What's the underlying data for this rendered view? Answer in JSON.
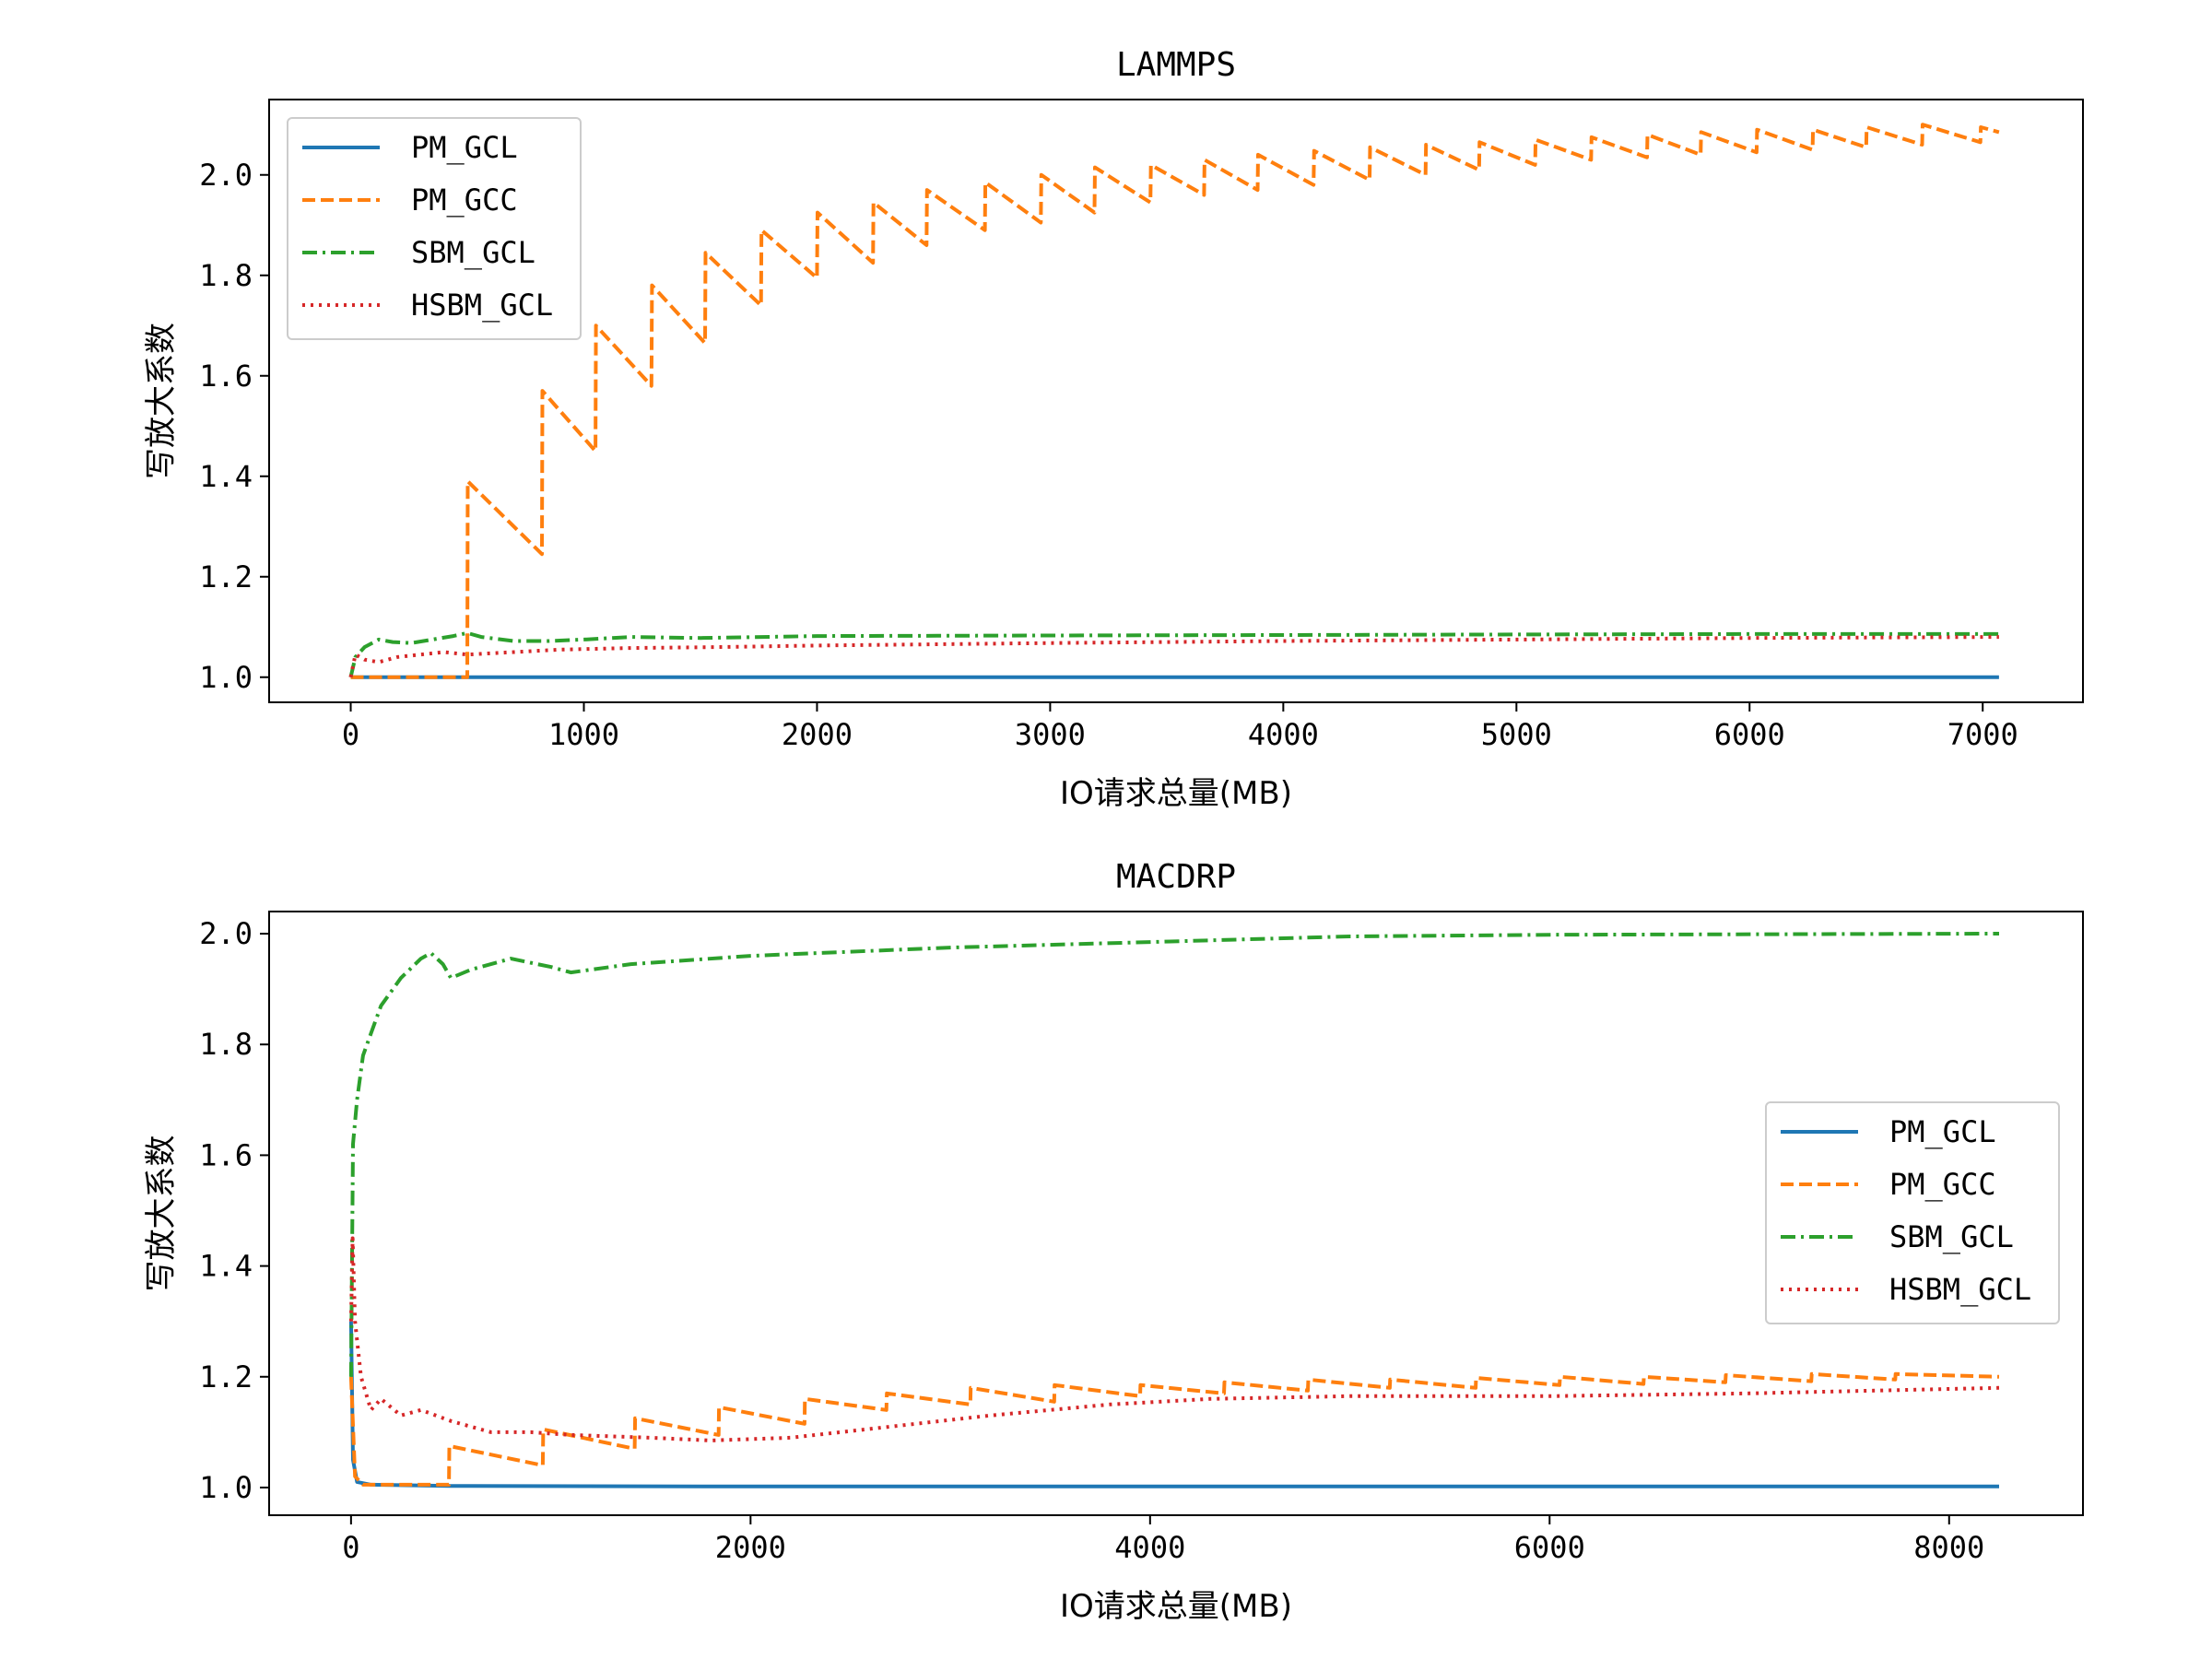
{
  "chart_data": [
    {
      "type": "line",
      "title": "LAMMPS",
      "xlabel": "IO请求总量(MB)",
      "ylabel": "写放大系数",
      "xlim": [
        -350,
        7430
      ],
      "ylim": [
        0.95,
        2.15
      ],
      "xticks": [
        "0",
        "1000",
        "2000",
        "3000",
        "4000",
        "5000",
        "6000",
        "7000"
      ],
      "yticks": [
        "1.0",
        "1.2",
        "1.4",
        "1.6",
        "1.8",
        "2.0"
      ],
      "legend_position": "upper-left",
      "grid": false,
      "series": [
        {
          "name": "PM_GCL",
          "color": "#1f77b4",
          "style": "solid",
          "points": [
            [
              0,
              1.0
            ],
            [
              7070,
              1.0
            ]
          ]
        },
        {
          "name": "PM_GCC",
          "color": "#ff7f0e",
          "style": "dashed",
          "points": [
            [
              0,
              1.0
            ],
            [
              500,
              1.0
            ],
            [
              502,
              1.39
            ],
            [
              820,
              1.245
            ],
            [
              822,
              1.57
            ],
            [
              1050,
              1.45
            ],
            [
              1052,
              1.7
            ],
            [
              1290,
              1.58
            ],
            [
              1292,
              1.78
            ],
            [
              1520,
              1.665
            ],
            [
              1522,
              1.845
            ],
            [
              1760,
              1.74
            ],
            [
              1762,
              1.89
            ],
            [
              2000,
              1.795
            ],
            [
              2002,
              1.925
            ],
            [
              2240,
              1.825
            ],
            [
              2242,
              1.945
            ],
            [
              2470,
              1.86
            ],
            [
              2472,
              1.97
            ],
            [
              2720,
              1.89
            ],
            [
              2722,
              1.985
            ],
            [
              2960,
              1.905
            ],
            [
              2962,
              2.0
            ],
            [
              3190,
              1.925
            ],
            [
              3192,
              2.015
            ],
            [
              3430,
              1.945
            ],
            [
              3432,
              2.02
            ],
            [
              3660,
              1.96
            ],
            [
              3662,
              2.03
            ],
            [
              3890,
              1.97
            ],
            [
              3892,
              2.04
            ],
            [
              4130,
              1.98
            ],
            [
              4132,
              2.048
            ],
            [
              4370,
              1.99
            ],
            [
              4372,
              2.055
            ],
            [
              4610,
              2.0
            ],
            [
              4612,
              2.06
            ],
            [
              4840,
              2.01
            ],
            [
              4842,
              2.065
            ],
            [
              5080,
              2.02
            ],
            [
              5082,
              2.07
            ],
            [
              5320,
              2.03
            ],
            [
              5322,
              2.075
            ],
            [
              5560,
              2.035
            ],
            [
              5562,
              2.08
            ],
            [
              5790,
              2.04
            ],
            [
              5792,
              2.085
            ],
            [
              6030,
              2.045
            ],
            [
              6032,
              2.09
            ],
            [
              6270,
              2.05
            ],
            [
              6272,
              2.09
            ],
            [
              6500,
              2.055
            ],
            [
              6502,
              2.095
            ],
            [
              6740,
              2.06
            ],
            [
              6742,
              2.1
            ],
            [
              6990,
              2.065
            ],
            [
              6992,
              2.095
            ],
            [
              7070,
              2.085
            ]
          ]
        },
        {
          "name": "SBM_GCL",
          "color": "#2ca02c",
          "style": "dashdot",
          "points": [
            [
              0,
              1.0
            ],
            [
              20,
              1.04
            ],
            [
              60,
              1.06
            ],
            [
              120,
              1.075
            ],
            [
              180,
              1.07
            ],
            [
              260,
              1.068
            ],
            [
              350,
              1.075
            ],
            [
              440,
              1.082
            ],
            [
              500,
              1.088
            ],
            [
              560,
              1.08
            ],
            [
              700,
              1.072
            ],
            [
              850,
              1.072
            ],
            [
              1000,
              1.075
            ],
            [
              1200,
              1.08
            ],
            [
              1500,
              1.078
            ],
            [
              2000,
              1.082
            ],
            [
              3000,
              1.083
            ],
            [
              4000,
              1.084
            ],
            [
              5000,
              1.085
            ],
            [
              6000,
              1.086
            ],
            [
              7070,
              1.086
            ]
          ]
        },
        {
          "name": "HSBM_GCL",
          "color": "#d62728",
          "style": "dotted",
          "points": [
            [
              0,
              1.0
            ],
            [
              20,
              1.045
            ],
            [
              60,
              1.035
            ],
            [
              120,
              1.03
            ],
            [
              200,
              1.04
            ],
            [
              300,
              1.045
            ],
            [
              400,
              1.05
            ],
            [
              500,
              1.045
            ],
            [
              700,
              1.05
            ],
            [
              900,
              1.055
            ],
            [
              1200,
              1.058
            ],
            [
              1600,
              1.06
            ],
            [
              2000,
              1.063
            ],
            [
              3000,
              1.068
            ],
            [
              4000,
              1.072
            ],
            [
              5000,
              1.075
            ],
            [
              6000,
              1.078
            ],
            [
              7070,
              1.08
            ]
          ]
        }
      ]
    },
    {
      "type": "line",
      "title": "MACDRP",
      "xlabel": "IO请求总量(MB)",
      "ylabel": "写放大系数",
      "xlim": [
        -410,
        8670
      ],
      "ylim": [
        0.95,
        2.04
      ],
      "xticks": [
        "0",
        "2000",
        "4000",
        "6000",
        "8000"
      ],
      "yticks": [
        "1.0",
        "1.2",
        "1.4",
        "1.6",
        "1.8",
        "2.0"
      ],
      "legend_position": "center-right",
      "grid": false,
      "series": [
        {
          "name": "PM_GCL",
          "color": "#1f77b4",
          "style": "solid",
          "points": [
            [
              0,
              1.3
            ],
            [
              10,
              1.05
            ],
            [
              30,
              1.01
            ],
            [
              100,
              1.005
            ],
            [
              500,
              1.003
            ],
            [
              2000,
              1.002
            ],
            [
              8250,
              1.002
            ]
          ]
        },
        {
          "name": "PM_GCC",
          "color": "#ff7f0e",
          "style": "dashed",
          "points": [
            [
              0,
              1.2
            ],
            [
              20,
              1.02
            ],
            [
              60,
              1.005
            ],
            [
              490,
              1.005
            ],
            [
              492,
              1.075
            ],
            [
              960,
              1.04
            ],
            [
              962,
              1.105
            ],
            [
              1420,
              1.07
            ],
            [
              1422,
              1.125
            ],
            [
              1840,
              1.095
            ],
            [
              1842,
              1.145
            ],
            [
              2270,
              1.115
            ],
            [
              2272,
              1.16
            ],
            [
              2680,
              1.14
            ],
            [
              2682,
              1.17
            ],
            [
              3100,
              1.15
            ],
            [
              3102,
              1.18
            ],
            [
              3520,
              1.155
            ],
            [
              3522,
              1.185
            ],
            [
              3950,
              1.165
            ],
            [
              3952,
              1.185
            ],
            [
              4370,
              1.17
            ],
            [
              4372,
              1.19
            ],
            [
              4790,
              1.175
            ],
            [
              4792,
              1.195
            ],
            [
              5200,
              1.18
            ],
            [
              5202,
              1.195
            ],
            [
              5630,
              1.18
            ],
            [
              5632,
              1.198
            ],
            [
              6050,
              1.185
            ],
            [
              6052,
              1.2
            ],
            [
              6470,
              1.187
            ],
            [
              6472,
              1.2
            ],
            [
              6880,
              1.19
            ],
            [
              6882,
              1.203
            ],
            [
              7310,
              1.192
            ],
            [
              7312,
              1.205
            ],
            [
              7730,
              1.195
            ],
            [
              7732,
              1.205
            ],
            [
              8250,
              1.2
            ]
          ]
        },
        {
          "name": "SBM_GCL",
          "color": "#2ca02c",
          "style": "dashdot",
          "points": [
            [
              0,
              1.2
            ],
            [
              10,
              1.62
            ],
            [
              30,
              1.7
            ],
            [
              60,
              1.78
            ],
            [
              100,
              1.82
            ],
            [
              150,
              1.87
            ],
            [
              250,
              1.92
            ],
            [
              350,
              1.955
            ],
            [
              400,
              1.965
            ],
            [
              460,
              1.945
            ],
            [
              500,
              1.92
            ],
            [
              600,
              1.935
            ],
            [
              800,
              1.955
            ],
            [
              1000,
              1.94
            ],
            [
              1100,
              1.93
            ],
            [
              1400,
              1.945
            ],
            [
              2000,
              1.96
            ],
            [
              3000,
              1.975
            ],
            [
              4000,
              1.985
            ],
            [
              5000,
              1.995
            ],
            [
              6000,
              1.998
            ],
            [
              8250,
              2.0
            ]
          ]
        },
        {
          "name": "HSBM_GCL",
          "color": "#d62728",
          "style": "dotted",
          "points": [
            [
              0,
              1.3
            ],
            [
              8,
              1.45
            ],
            [
              20,
              1.3
            ],
            [
              50,
              1.2
            ],
            [
              100,
              1.14
            ],
            [
              150,
              1.16
            ],
            [
              250,
              1.13
            ],
            [
              350,
              1.14
            ],
            [
              500,
              1.12
            ],
            [
              700,
              1.1
            ],
            [
              900,
              1.1
            ],
            [
              1100,
              1.095
            ],
            [
              1500,
              1.09
            ],
            [
              1800,
              1.085
            ],
            [
              2200,
              1.09
            ],
            [
              2700,
              1.11
            ],
            [
              3200,
              1.13
            ],
            [
              3800,
              1.15
            ],
            [
              4300,
              1.16
            ],
            [
              5000,
              1.165
            ],
            [
              6000,
              1.165
            ],
            [
              7000,
              1.17
            ],
            [
              8250,
              1.18
            ]
          ]
        }
      ]
    }
  ]
}
